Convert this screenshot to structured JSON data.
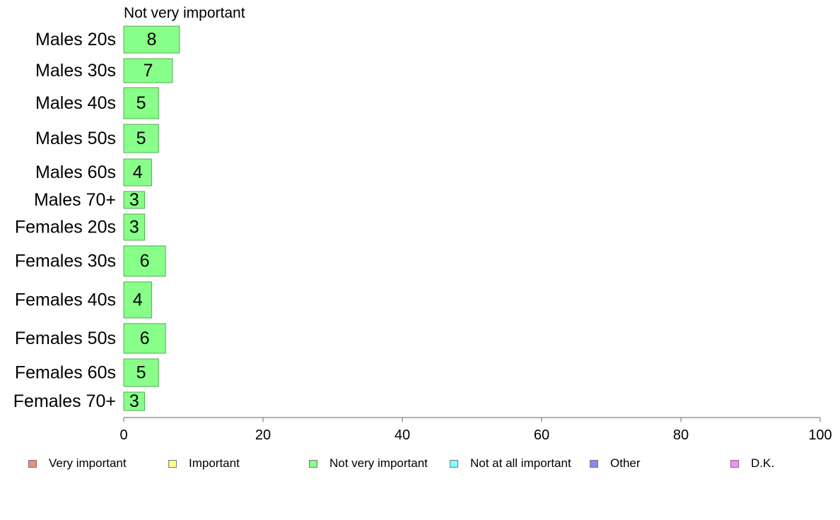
{
  "chart_data": {
    "type": "bar",
    "orientation": "horizontal",
    "title": "Not very important",
    "categories": [
      "Males 20s",
      "Males 30s",
      "Males 40s",
      "Males 50s",
      "Males 60s",
      "Males 70+",
      "Females 20s",
      "Females 30s",
      "Females 40s",
      "Females 50s",
      "Females 60s",
      "Females 70+"
    ],
    "values": [
      8,
      7,
      5,
      5,
      4,
      3,
      3,
      6,
      4,
      6,
      5,
      3
    ],
    "data_labels": [
      "8",
      "7",
      "5",
      "5",
      "4",
      "3",
      "3",
      "6",
      "4",
      "6",
      "5",
      "3"
    ],
    "xlim": [
      0,
      100
    ],
    "xticks": [
      0,
      20,
      40,
      60,
      80,
      100
    ],
    "xtick_labels": [
      "0",
      "20",
      "40",
      "60",
      "80",
      "100"
    ],
    "grid": false,
    "bar_color": "#88ff88",
    "bar_edge_color": "#55aa55",
    "legend_position": "bottom",
    "legend": [
      {
        "label": "Very important",
        "color": "#f28a80"
      },
      {
        "label": "Important",
        "color": "#ffff88"
      },
      {
        "label": "Not very important",
        "color": "#88ff88"
      },
      {
        "label": "Not at all important",
        "color": "#88ffff"
      },
      {
        "label": "Other",
        "color": "#8888f0"
      },
      {
        "label": "D.K.",
        "color": "#ff88ff"
      }
    ]
  }
}
